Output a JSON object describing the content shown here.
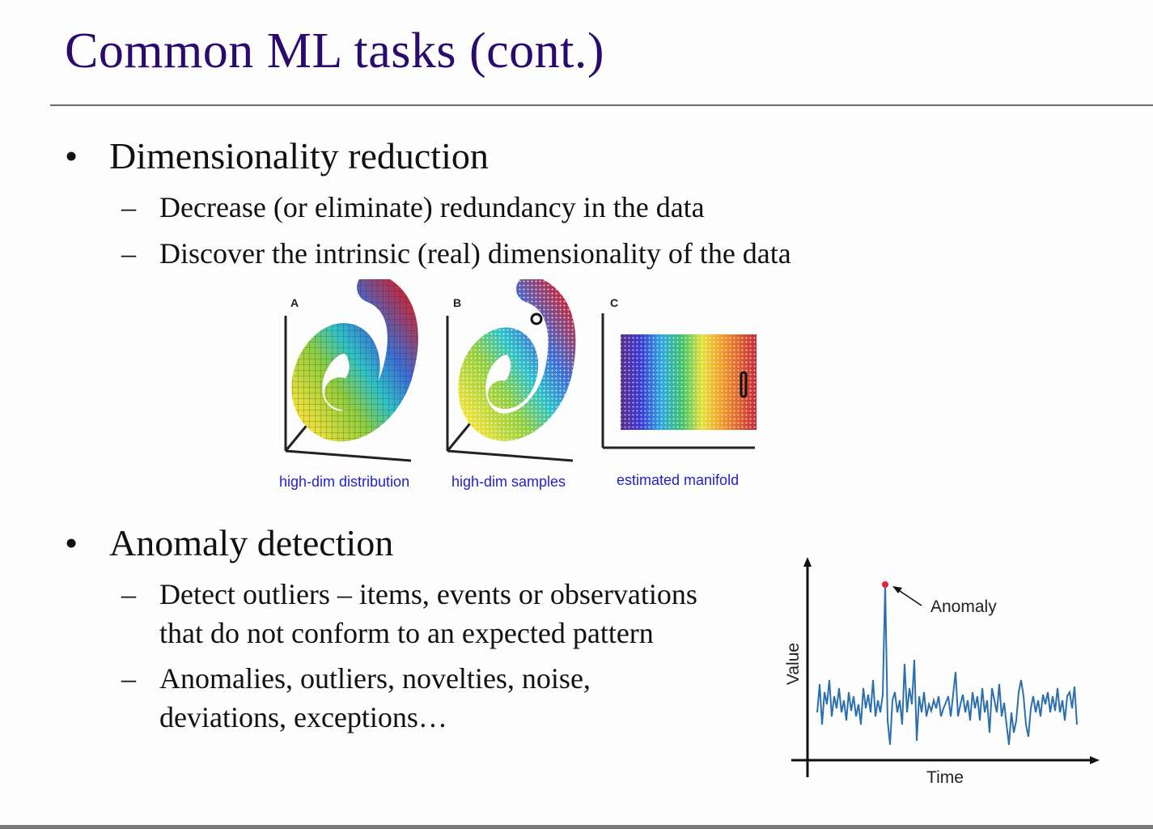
{
  "slide": {
    "title": "Common ML tasks (cont.)"
  },
  "sections": [
    {
      "bullet": "•",
      "heading": "Dimensionality reduction",
      "subitems": [
        {
          "dash": "–",
          "lines": [
            "Decrease (or eliminate) redundancy in the data"
          ]
        },
        {
          "dash": "–",
          "lines": [
            "Discover the intrinsic (real) dimensionality of the data"
          ]
        }
      ]
    },
    {
      "bullet": "•",
      "heading": "Anomaly detection",
      "subitems": [
        {
          "dash": "–",
          "lines": [
            "Detect outliers – items, events or observations",
            "that do not conform to an expected pattern"
          ]
        },
        {
          "dash": "–",
          "lines": [
            "Anomalies, outliers, novelties, noise,",
            "deviations, exceptions…"
          ]
        }
      ]
    }
  ],
  "figure": {
    "panels": [
      {
        "letter": "A",
        "caption": "high-dim distribution"
      },
      {
        "letter": "B",
        "caption": "high-dim samples"
      },
      {
        "letter": "C",
        "caption": "estimated manifold"
      }
    ],
    "caption_color": "#1f1fcf"
  },
  "anomaly_chart": {
    "ylabel": "Value",
    "xlabel": "Time",
    "annotation": "Anomaly",
    "line_color": "#2b6fad",
    "marker_color": "#e0233a"
  },
  "colors": {
    "title": "#2a0a6e",
    "rule": "#6b6b6b"
  }
}
